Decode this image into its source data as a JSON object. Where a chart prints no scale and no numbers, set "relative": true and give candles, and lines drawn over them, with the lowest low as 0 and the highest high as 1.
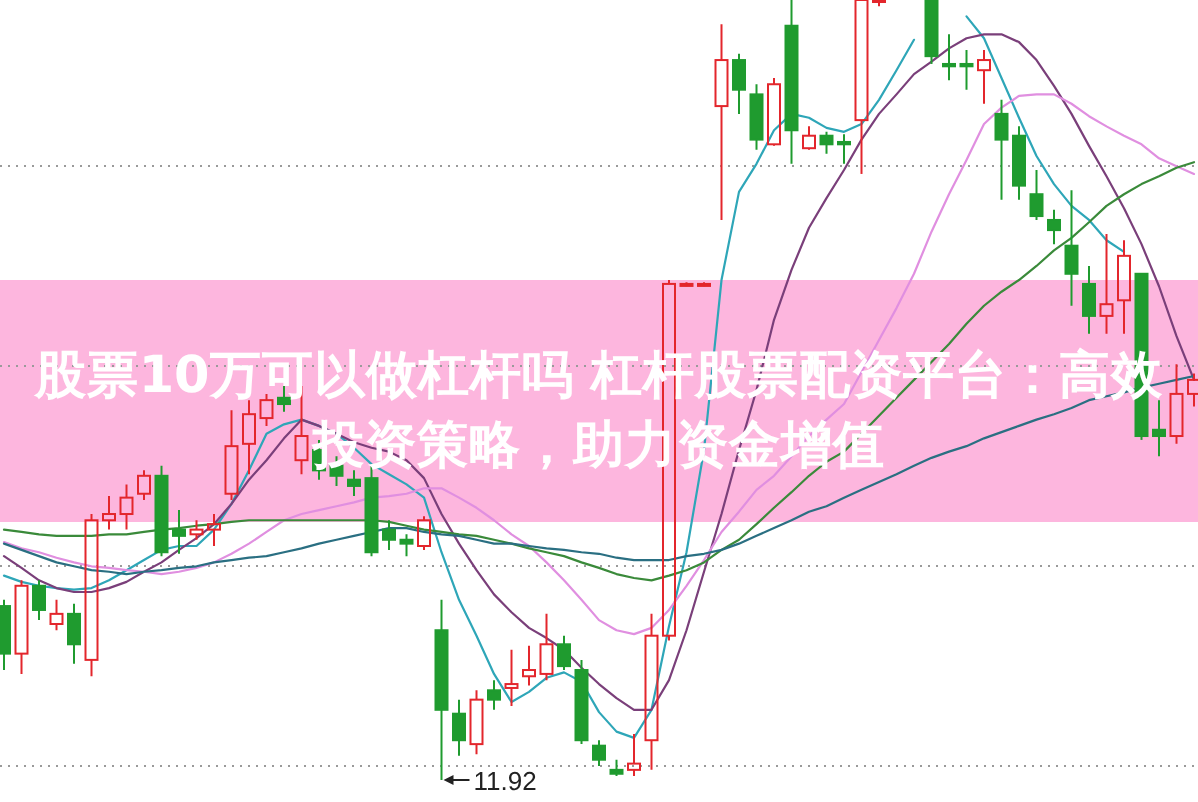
{
  "chart_data": {
    "type": "candlestick",
    "title": "股票10万可以做杠杆吗 杠杆股票配资平台：高效投资策略，助力资金增值",
    "relative": true,
    "grid": true,
    "categories": [
      null,
      null,
      null,
      null,
      null,
      null,
      null,
      null,
      null,
      null,
      null,
      null,
      null,
      null,
      null,
      null,
      null,
      null,
      null,
      null,
      null,
      null,
      null,
      null,
      null,
      null,
      null,
      null,
      null,
      null,
      null,
      null,
      null,
      null,
      null,
      null,
      null,
      null,
      null,
      null,
      null,
      null,
      null,
      null,
      null,
      null,
      null,
      null,
      null,
      null,
      null,
      null,
      null,
      null,
      null,
      null,
      null,
      null,
      null,
      null,
      null,
      null,
      null,
      null,
      null,
      null,
      null,
      null,
      null
    ],
    "ohlc": [
      [
        0.223,
        0.231,
        0.141,
        0.162
      ],
      [
        0.162,
        0.256,
        0.136,
        0.249
      ],
      [
        0.249,
        0.256,
        0.205,
        0.218
      ],
      [
        0.2,
        0.231,
        0.192,
        0.213
      ],
      [
        0.213,
        0.226,
        0.149,
        0.174
      ],
      [
        0.154,
        0.341,
        0.133,
        0.333
      ],
      [
        0.333,
        0.364,
        0.321,
        0.341
      ],
      [
        0.341,
        0.379,
        0.321,
        0.362
      ],
      [
        0.367,
        0.397,
        0.359,
        0.39
      ],
      [
        0.39,
        0.403,
        0.287,
        0.292
      ],
      [
        0.321,
        0.346,
        0.29,
        0.313
      ],
      [
        0.315,
        0.333,
        0.308,
        0.321
      ],
      [
        0.321,
        0.341,
        0.3,
        0.328
      ],
      [
        0.367,
        0.474,
        0.359,
        0.428
      ],
      [
        0.431,
        0.487,
        0.392,
        0.469
      ],
      [
        0.464,
        0.495,
        0.454,
        0.487
      ],
      [
        0.49,
        0.505,
        0.472,
        0.482
      ],
      [
        0.41,
        0.505,
        0.392,
        0.441
      ],
      [
        0.423,
        0.436,
        0.385,
        0.397
      ],
      [
        0.403,
        0.415,
        0.377,
        0.39
      ],
      [
        0.385,
        0.397,
        0.364,
        0.377
      ],
      [
        0.387,
        0.403,
        0.287,
        0.292
      ],
      [
        0.321,
        0.333,
        0.295,
        0.308
      ],
      [
        0.308,
        0.315,
        0.287,
        0.303
      ],
      [
        0.3,
        0.338,
        0.295,
        0.333
      ],
      [
        0.192,
        0.231,
        0,
        0.09
      ],
      [
        0.085,
        0.103,
        0.031,
        0.051
      ],
      [
        0.046,
        0.115,
        0.033,
        0.103
      ],
      [
        0.115,
        0.128,
        0.09,
        0.103
      ],
      [
        0.118,
        0.167,
        0.095,
        0.123
      ],
      [
        0.133,
        0.172,
        0.121,
        0.141
      ],
      [
        0.136,
        0.213,
        0.128,
        0.174
      ],
      [
        0.174,
        0.185,
        0.141,
        0.146
      ],
      [
        0.141,
        0.154,
        0.046,
        0.051
      ],
      [
        0.044,
        0.051,
        0.018,
        0.026
      ],
      [
        0.013,
        0.026,
        0.005,
        0.008
      ],
      [
        0.013,
        0.059,
        0.005,
        0.021
      ],
      [
        0.051,
        0.213,
        0.013,
        0.185
      ],
      [
        0.185,
        0.641,
        0.179,
        0.636
      ],
      [
        0.636,
        0.638,
        0.633,
        0.636
      ],
      [
        0.636,
        0.638,
        0.633,
        0.636
      ],
      [
        0.864,
        0.969,
        0.718,
        0.923
      ],
      [
        0.923,
        0.931,
        0.854,
        0.885
      ],
      [
        0.879,
        0.892,
        0.808,
        0.821
      ],
      [
        0.815,
        0.9,
        0.813,
        0.892
      ],
      [
        0.967,
        1,
        0.79,
        0.833
      ],
      [
        0.81,
        0.838,
        0.808,
        0.826
      ],
      [
        0.826,
        0.831,
        0.803,
        0.815
      ],
      [
        0.818,
        0.828,
        0.79,
        0.815
      ],
      [
        0.846,
        1,
        0.777,
        1
      ],
      [
        1,
        1,
        0.992,
        1
      ],
      null,
      null,
      [
        1,
        1,
        0.918,
        0.928
      ],
      [
        0.918,
        0.956,
        0.897,
        0.915
      ],
      [
        0.918,
        0.936,
        0.885,
        0.915
      ],
      [
        0.91,
        0.936,
        0.867,
        0.923
      ],
      [
        0.854,
        0.872,
        0.744,
        0.821
      ],
      [
        0.826,
        0.838,
        0.744,
        0.762
      ],
      [
        0.751,
        0.782,
        0.718,
        0.723
      ],
      [
        0.718,
        0.731,
        0.687,
        0.705
      ],
      [
        0.685,
        0.756,
        0.608,
        0.649
      ],
      [
        0.636,
        0.659,
        0.572,
        0.595
      ],
      [
        0.595,
        0.7,
        0.572,
        0.61
      ],
      [
        0.615,
        0.692,
        0.572,
        0.672
      ],
      [
        0.649,
        0.649,
        0.436,
        0.441
      ],
      [
        0.449,
        0.487,
        0.415,
        0.441
      ],
      [
        0.441,
        0.533,
        0.431,
        0.495
      ],
      [
        0.495,
        0.521,
        0.479,
        0.513
      ]
    ],
    "series": [
      {
        "type": "line",
        "color": "#2ea6b8",
        "values": [
          0.262,
          0.254,
          0.249,
          0.246,
          0.244,
          0.246,
          0.256,
          0.269,
          0.282,
          0.295,
          0.3,
          0.3,
          0.321,
          0.354,
          0.397,
          0.444,
          0.456,
          0.462,
          0.454,
          0.444,
          0.426,
          0.405,
          0.392,
          0.379,
          0.362,
          0.292,
          0.231,
          0.185,
          0.136,
          0.1,
          0.113,
          0.131,
          0.138,
          0.126,
          0.087,
          0.062,
          0.054,
          0.09,
          0.197,
          0.292,
          0.423,
          0.641,
          0.754,
          0.79,
          0.833,
          0.854,
          0.849,
          0.836,
          0.831,
          0.841,
          0.872,
          0.91,
          0.949,
          null,
          null,
          0.979,
          0.951,
          0.9,
          0.849,
          0.8,
          0.764,
          0.736,
          0.718,
          0.692,
          0.677,
          null,
          null,
          null,
          null
        ]
      },
      {
        "type": "line",
        "color": "#7a3f7a",
        "values": [
          0.287,
          0.272,
          0.256,
          0.246,
          0.241,
          0.241,
          0.246,
          0.254,
          0.267,
          0.279,
          0.295,
          0.31,
          0.328,
          0.354,
          0.385,
          0.41,
          0.438,
          0.462,
          0.454,
          0.444,
          0.433,
          0.426,
          0.421,
          0.41,
          0.387,
          0.341,
          0.303,
          0.269,
          0.238,
          0.215,
          0.195,
          0.182,
          0.167,
          0.144,
          0.123,
          0.105,
          0.09,
          0.09,
          0.128,
          0.192,
          0.267,
          0.341,
          0.423,
          0.5,
          0.59,
          0.654,
          0.708,
          0.746,
          0.782,
          0.821,
          0.854,
          0.879,
          0.905,
          0.921,
          0.938,
          0.951,
          0.956,
          0.956,
          0.946,
          0.923,
          0.89,
          0.854,
          0.813,
          0.774,
          0.733,
          0.687,
          0.633,
          0.569,
          0.513
        ]
      },
      {
        "type": "line",
        "color": "#e08fe0",
        "values": [
          0.305,
          0.297,
          0.292,
          0.285,
          0.279,
          0.274,
          0.272,
          0.269,
          0.267,
          0.264,
          0.267,
          0.272,
          0.279,
          0.29,
          0.303,
          0.318,
          0.333,
          0.341,
          0.346,
          0.351,
          0.356,
          0.362,
          0.364,
          0.367,
          0.374,
          0.374,
          0.362,
          0.349,
          0.333,
          0.315,
          0.3,
          0.279,
          0.256,
          0.231,
          0.205,
          0.192,
          0.187,
          0.195,
          0.218,
          0.249,
          0.282,
          0.318,
          0.344,
          0.372,
          0.39,
          0.415,
          0.441,
          0.462,
          0.482,
          0.523,
          0.564,
          0.605,
          0.649,
          0.703,
          0.751,
          0.795,
          0.841,
          0.862,
          0.877,
          0.879,
          0.879,
          0.867,
          0.851,
          0.838,
          0.826,
          0.815,
          0.797,
          0.787,
          0.777
        ]
      },
      {
        "type": "line",
        "color": "#3a8a3a",
        "values": [
          0.321,
          0.318,
          0.315,
          0.313,
          0.313,
          0.313,
          0.315,
          0.315,
          0.318,
          0.321,
          0.323,
          0.326,
          0.328,
          0.331,
          0.333,
          0.333,
          0.333,
          0.333,
          0.333,
          0.333,
          0.333,
          0.333,
          0.331,
          0.326,
          0.321,
          0.318,
          0.315,
          0.313,
          0.308,
          0.303,
          0.297,
          0.292,
          0.287,
          0.279,
          0.272,
          0.264,
          0.259,
          0.256,
          0.262,
          0.269,
          0.279,
          0.295,
          0.308,
          0.328,
          0.349,
          0.369,
          0.39,
          0.408,
          0.421,
          0.444,
          0.467,
          0.49,
          0.513,
          0.536,
          0.559,
          0.585,
          0.608,
          0.626,
          0.641,
          0.659,
          0.679,
          0.695,
          0.715,
          0.736,
          0.751,
          0.764,
          0.774,
          0.785,
          0.792
        ]
      },
      {
        "type": "line",
        "color": "#2a6f82",
        "values": [
          0.303,
          0.295,
          0.287,
          0.279,
          0.274,
          0.269,
          0.267,
          0.264,
          0.267,
          0.269,
          0.272,
          0.274,
          0.279,
          0.282,
          0.285,
          0.287,
          0.292,
          0.297,
          0.303,
          0.308,
          0.313,
          0.318,
          0.323,
          0.323,
          0.318,
          0.315,
          0.313,
          0.308,
          0.303,
          0.303,
          0.3,
          0.297,
          0.295,
          0.292,
          0.29,
          0.285,
          0.282,
          0.282,
          0.282,
          0.287,
          0.29,
          0.295,
          0.303,
          0.313,
          0.323,
          0.333,
          0.344,
          0.351,
          0.362,
          0.372,
          0.382,
          0.392,
          0.403,
          0.413,
          0.421,
          0.428,
          0.438,
          0.446,
          0.454,
          0.462,
          0.469,
          0.477,
          0.487,
          0.492,
          0.497,
          0.503,
          0.508,
          0.513,
          0.518
        ]
      }
    ],
    "annotations": [
      "11.92"
    ]
  }
}
